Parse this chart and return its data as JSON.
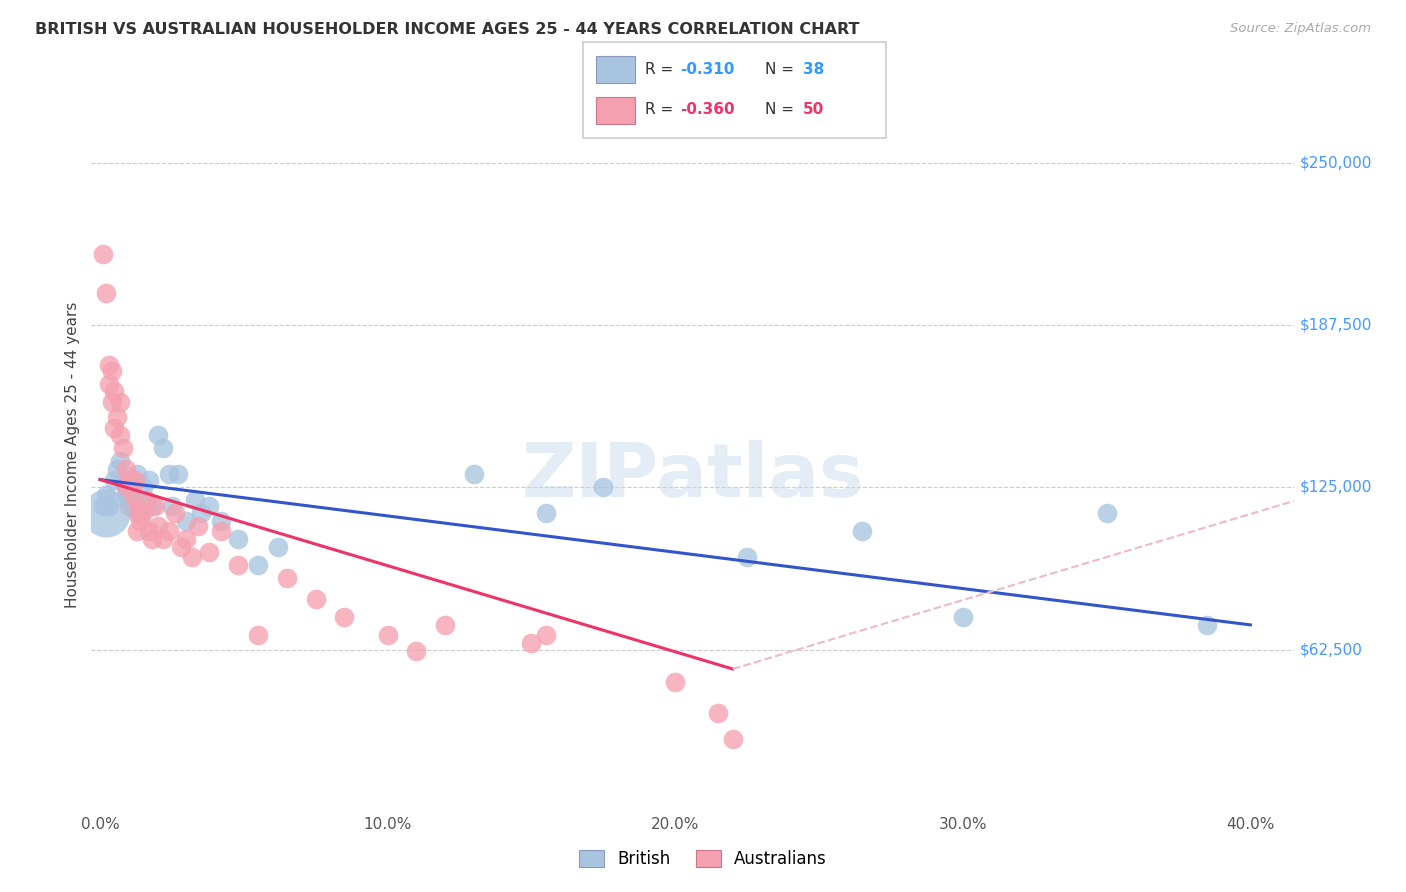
{
  "title": "BRITISH VS AUSTRALIAN HOUSEHOLDER INCOME AGES 25 - 44 YEARS CORRELATION CHART",
  "source": "Source: ZipAtlas.com",
  "ylabel": "Householder Income Ages 25 - 44 years",
  "xlabel_ticks": [
    "0.0%",
    "10.0%",
    "20.0%",
    "30.0%",
    "40.0%"
  ],
  "xlabel_vals": [
    0.0,
    0.1,
    0.2,
    0.3,
    0.4
  ],
  "ylabel_ticks": [
    "$62,500",
    "$125,000",
    "$187,500",
    "$250,000"
  ],
  "ylabel_vals": [
    62500,
    125000,
    187500,
    250000
  ],
  "ylim": [
    0,
    275000
  ],
  "xlim": [
    -0.003,
    0.415
  ],
  "british_R": -0.31,
  "british_N": 38,
  "australian_R": -0.36,
  "australian_N": 50,
  "british_color": "#a8c4e0",
  "australian_color": "#f4a0b0",
  "british_line_color": "#3355cc",
  "australian_line_color": "#ee3366",
  "australian_line_dashed_color": "#f0b8c8",
  "watermark": "ZIPatlas",
  "british_x": [
    0.001,
    0.002,
    0.003,
    0.005,
    0.006,
    0.007,
    0.008,
    0.009,
    0.01,
    0.011,
    0.012,
    0.013,
    0.014,
    0.015,
    0.016,
    0.017,
    0.018,
    0.02,
    0.022,
    0.024,
    0.025,
    0.027,
    0.03,
    0.033,
    0.035,
    0.038,
    0.042,
    0.048,
    0.055,
    0.062,
    0.13,
    0.155,
    0.175,
    0.225,
    0.265,
    0.3,
    0.35,
    0.385
  ],
  "british_y": [
    118000,
    122000,
    118000,
    128000,
    132000,
    135000,
    127000,
    122000,
    120000,
    125000,
    118000,
    130000,
    115000,
    125000,
    120000,
    128000,
    118000,
    145000,
    140000,
    130000,
    118000,
    130000,
    112000,
    120000,
    115000,
    118000,
    112000,
    105000,
    95000,
    102000,
    130000,
    115000,
    125000,
    98000,
    108000,
    75000,
    115000,
    72000
  ],
  "british_big_x": [
    0.002
  ],
  "british_big_y": [
    115000
  ],
  "australian_x": [
    0.001,
    0.002,
    0.003,
    0.003,
    0.004,
    0.004,
    0.005,
    0.005,
    0.006,
    0.007,
    0.007,
    0.008,
    0.009,
    0.009,
    0.01,
    0.01,
    0.011,
    0.012,
    0.012,
    0.013,
    0.013,
    0.014,
    0.015,
    0.016,
    0.017,
    0.018,
    0.019,
    0.02,
    0.022,
    0.024,
    0.026,
    0.028,
    0.03,
    0.032,
    0.034,
    0.038,
    0.042,
    0.048,
    0.055,
    0.065,
    0.075,
    0.085,
    0.1,
    0.11,
    0.12,
    0.15,
    0.155,
    0.2,
    0.215,
    0.22
  ],
  "australian_y": [
    215000,
    200000,
    172000,
    165000,
    170000,
    158000,
    162000,
    148000,
    152000,
    145000,
    158000,
    140000,
    132000,
    125000,
    128000,
    118000,
    125000,
    118000,
    128000,
    115000,
    108000,
    112000,
    115000,
    120000,
    108000,
    105000,
    118000,
    110000,
    105000,
    108000,
    115000,
    102000,
    105000,
    98000,
    110000,
    100000,
    108000,
    95000,
    68000,
    90000,
    82000,
    75000,
    68000,
    62000,
    72000,
    65000,
    68000,
    50000,
    38000,
    28000
  ],
  "grid_color": "#cccccc",
  "background_color": "#ffffff",
  "title_color": "#333333",
  "source_color": "#aaaaaa"
}
